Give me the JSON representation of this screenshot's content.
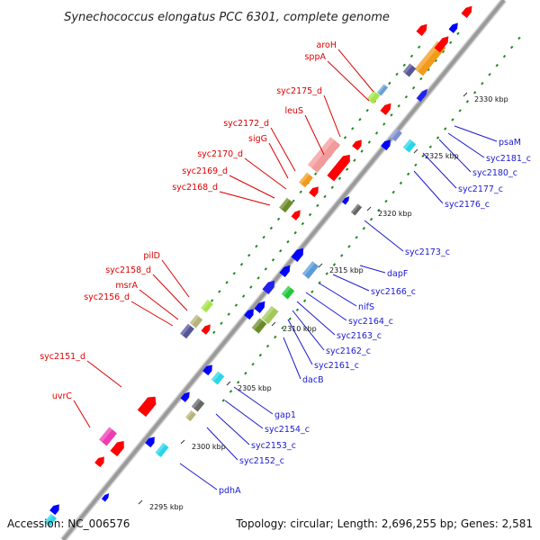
{
  "title": "Synechococcus elongatus PCC 6301, complete genome",
  "footer": {
    "accession": "Accession: NC_006576",
    "topology": "Topology: circular; Length: 2,696,255 bp; Genes: 2,581"
  },
  "colors": {
    "upper_strand_label": "#dd0000",
    "lower_strand_label": "#1a1ad0",
    "backbone": "#9a9a9a",
    "tick": "#1e8a1e"
  },
  "kbp_marks": [
    "2295 kbp",
    "2300 kbp",
    "2305 kbp",
    "2310 kbp",
    "2315 kbp",
    "2320 kbp",
    "2325 kbp",
    "2330 kbp"
  ],
  "upper_labels": [
    "aroH",
    "sppA",
    "syc2175_d",
    "leuS",
    "syc2172_d",
    "sigG",
    "syc2170_d",
    "syc2169_d",
    "syc2168_d",
    "pilD",
    "syc2158_d",
    "msrA",
    "syc2156_d",
    "syc2151_d",
    "uvrC"
  ],
  "lower_labels": [
    "psaM",
    "syc2181_c",
    "syc2180_c",
    "syc2177_c",
    "syc2176_c",
    "syc2173_c",
    "dapF",
    "syc2166_c",
    "nifS",
    "syc2164_c",
    "syc2163_c",
    "syc2162_c",
    "syc2161_c",
    "dacB",
    "gap1",
    "syc2154_c",
    "syc2153_c",
    "syc2152_c",
    "pdhA"
  ]
}
